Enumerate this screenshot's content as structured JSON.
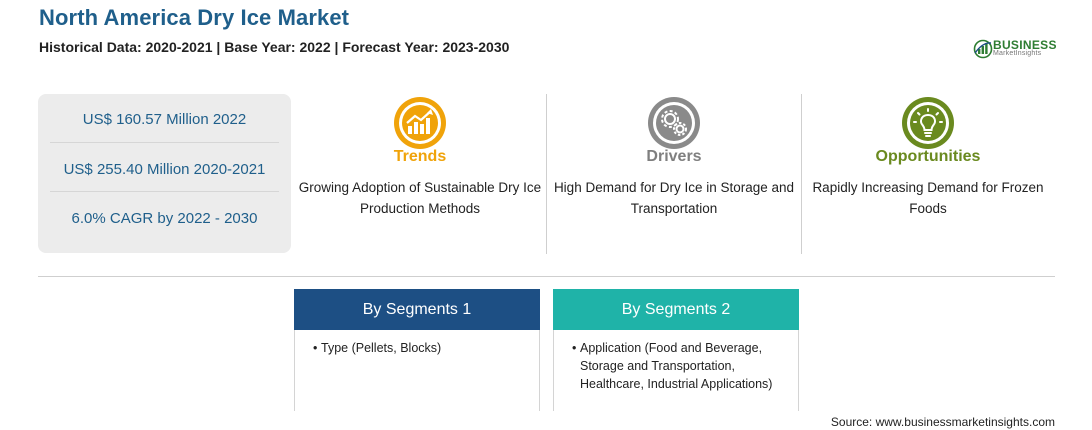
{
  "header": {
    "title": "North America Dry Ice Market",
    "subtitle": "Historical Data: 2020-2021 | Base Year: 2022 | Forecast Year: 2023-2030"
  },
  "logo": {
    "brand": "BUSINESS",
    "tagline": "MarketInsights",
    "color": "#2e7d32"
  },
  "stats": [
    "US$ 160.57 Million 2022",
    "US$ 255.40 Million 2020-2021",
    "6.0% CAGR by 2022 - 2030"
  ],
  "columns": [
    {
      "icon": "trend-chart-icon",
      "heading": "Trends",
      "description": "Growing Adoption of Sustainable Dry Ice Production Methods",
      "color": "#f0a30a"
    },
    {
      "icon": "gears-icon",
      "heading": "Drivers",
      "description": "High Demand for Dry Ice in Storage and Transportation",
      "color": "#7f7f7f"
    },
    {
      "icon": "lightbulb-icon",
      "heading": "Opportunities",
      "description": "Rapidly Increasing Demand for Frozen Foods",
      "color": "#6a8a1f"
    }
  ],
  "segments": [
    {
      "heading": "By Segments 1",
      "items": [
        "Type (Pellets, Blocks)"
      ],
      "color": "#1d4f84"
    },
    {
      "heading": "By Segments 2",
      "items": [
        "Application (Food and Beverage, Storage and Transportation, Healthcare, Industrial Applications)"
      ],
      "color": "#1fb3a8"
    }
  ],
  "source": "Source: www.businessmarketinsights.com"
}
